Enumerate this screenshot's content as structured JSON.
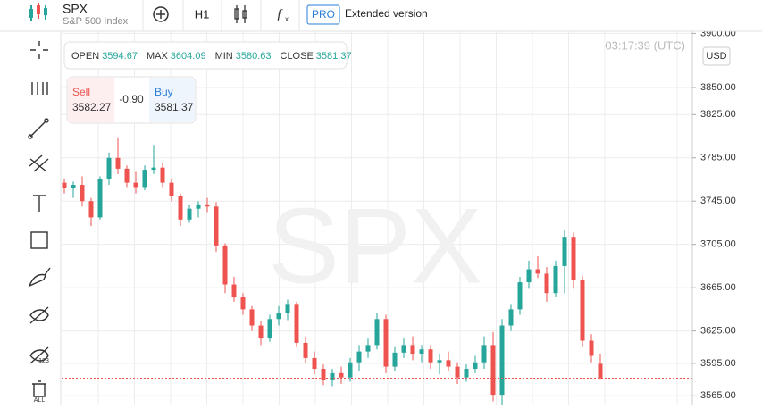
{
  "header": {
    "symbol": "SPX",
    "name": "S&P 500 Index",
    "timeframe": "H1",
    "pro_badge": "PRO",
    "extended": "Extended version"
  },
  "toolbar": {
    "labels": [
      "123",
      "ALL"
    ]
  },
  "ohlc_panel": {
    "items": [
      {
        "label": "OPEN",
        "value": "3594.67"
      },
      {
        "label": "MAX",
        "value": "3604.09"
      },
      {
        "label": "MIN",
        "value": "3580.63"
      },
      {
        "label": "CLOSE",
        "value": "3581.37"
      }
    ]
  },
  "trade_panel": {
    "sell_label": "Sell",
    "sell_price": "3582.27",
    "spread": "-0.90",
    "buy_label": "Buy",
    "buy_price": "3581.37"
  },
  "clock": "03:17:39 (UTC)",
  "currency": "USD",
  "watermark": "SPX",
  "chart_data": {
    "type": "candlestick",
    "open": [
      3762,
      3757,
      3760,
      3745,
      3730,
      3765,
      3785,
      3775,
      3762,
      3758,
      3774,
      3776,
      3762,
      3750,
      3728,
      3738,
      3742,
      3740,
      3704,
      3668,
      3656,
      3645,
      3630,
      3618,
      3636,
      3642,
      3650,
      3614,
      3600,
      3590,
      3580,
      3586,
      3582,
      3596,
      3606,
      3612,
      3636,
      3592,
      3605,
      3612,
      3604,
      3608,
      3596,
      3598,
      3592,
      3582,
      3590,
      3596,
      3612,
      3566,
      3630,
      3645,
      3670,
      3682,
      3678,
      3660,
      3685,
      3712,
      3672,
      3616,
      3594.67
    ],
    "high": [
      3766,
      3763,
      3768,
      3748,
      3768,
      3790,
      3804,
      3778,
      3772,
      3778,
      3797,
      3780,
      3766,
      3752,
      3742,
      3745,
      3748,
      3744,
      3706,
      3675,
      3660,
      3648,
      3634,
      3640,
      3648,
      3654,
      3652,
      3620,
      3606,
      3594,
      3590,
      3592,
      3600,
      3612,
      3618,
      3642,
      3640,
      3610,
      3618,
      3620,
      3612,
      3612,
      3604,
      3606,
      3596,
      3594,
      3602,
      3620,
      3624,
      3636,
      3650,
      3675,
      3690,
      3694,
      3684,
      3690,
      3718,
      3716,
      3676,
      3622,
      3604.09
    ],
    "low": [
      3752,
      3748,
      3740,
      3722,
      3728,
      3760,
      3770,
      3758,
      3752,
      3755,
      3770,
      3758,
      3745,
      3722,
      3725,
      3730,
      3735,
      3698,
      3660,
      3652,
      3640,
      3625,
      3612,
      3615,
      3630,
      3635,
      3610,
      3595,
      3585,
      3575,
      3574,
      3576,
      3578,
      3588,
      3600,
      3608,
      3586,
      3588,
      3600,
      3598,
      3596,
      3590,
      3585,
      3588,
      3576,
      3578,
      3586,
      3590,
      3560,
      3556,
      3625,
      3640,
      3664,
      3674,
      3652,
      3656,
      3660,
      3664,
      3610,
      3596,
      3580.63
    ],
    "close": [
      3757,
      3760,
      3745,
      3730,
      3765,
      3785,
      3775,
      3762,
      3758,
      3774,
      3776,
      3762,
      3750,
      3728,
      3738,
      3742,
      3740,
      3704,
      3668,
      3656,
      3645,
      3630,
      3618,
      3636,
      3642,
      3650,
      3614,
      3600,
      3590,
      3580,
      3586,
      3582,
      3596,
      3606,
      3612,
      3636,
      3592,
      3605,
      3612,
      3604,
      3608,
      3596,
      3598,
      3592,
      3582,
      3590,
      3596,
      3612,
      3566,
      3630,
      3645,
      3670,
      3682,
      3678,
      3660,
      3685,
      3712,
      3672,
      3616,
      3602,
      3581.37
    ],
    "up_color": "#26a69a",
    "down_color": "#ef5350",
    "ylim": [
      3557,
      3902
    ],
    "yticks": [
      {
        "value": 3900,
        "label": "3900.00"
      },
      {
        "value": 3850,
        "label": "3850.00"
      },
      {
        "value": 3825,
        "label": "3825.00"
      },
      {
        "value": 3785,
        "label": "3785.00"
      },
      {
        "value": 3745,
        "label": "3745.00"
      },
      {
        "value": 3705,
        "label": "3705.00"
      },
      {
        "value": 3665,
        "label": "3665.00"
      },
      {
        "value": 3625,
        "label": "3625.00"
      },
      {
        "value": 3595,
        "label": "3595.00"
      },
      {
        "value": 3565,
        "label": "3565.00"
      }
    ],
    "grid": true
  }
}
